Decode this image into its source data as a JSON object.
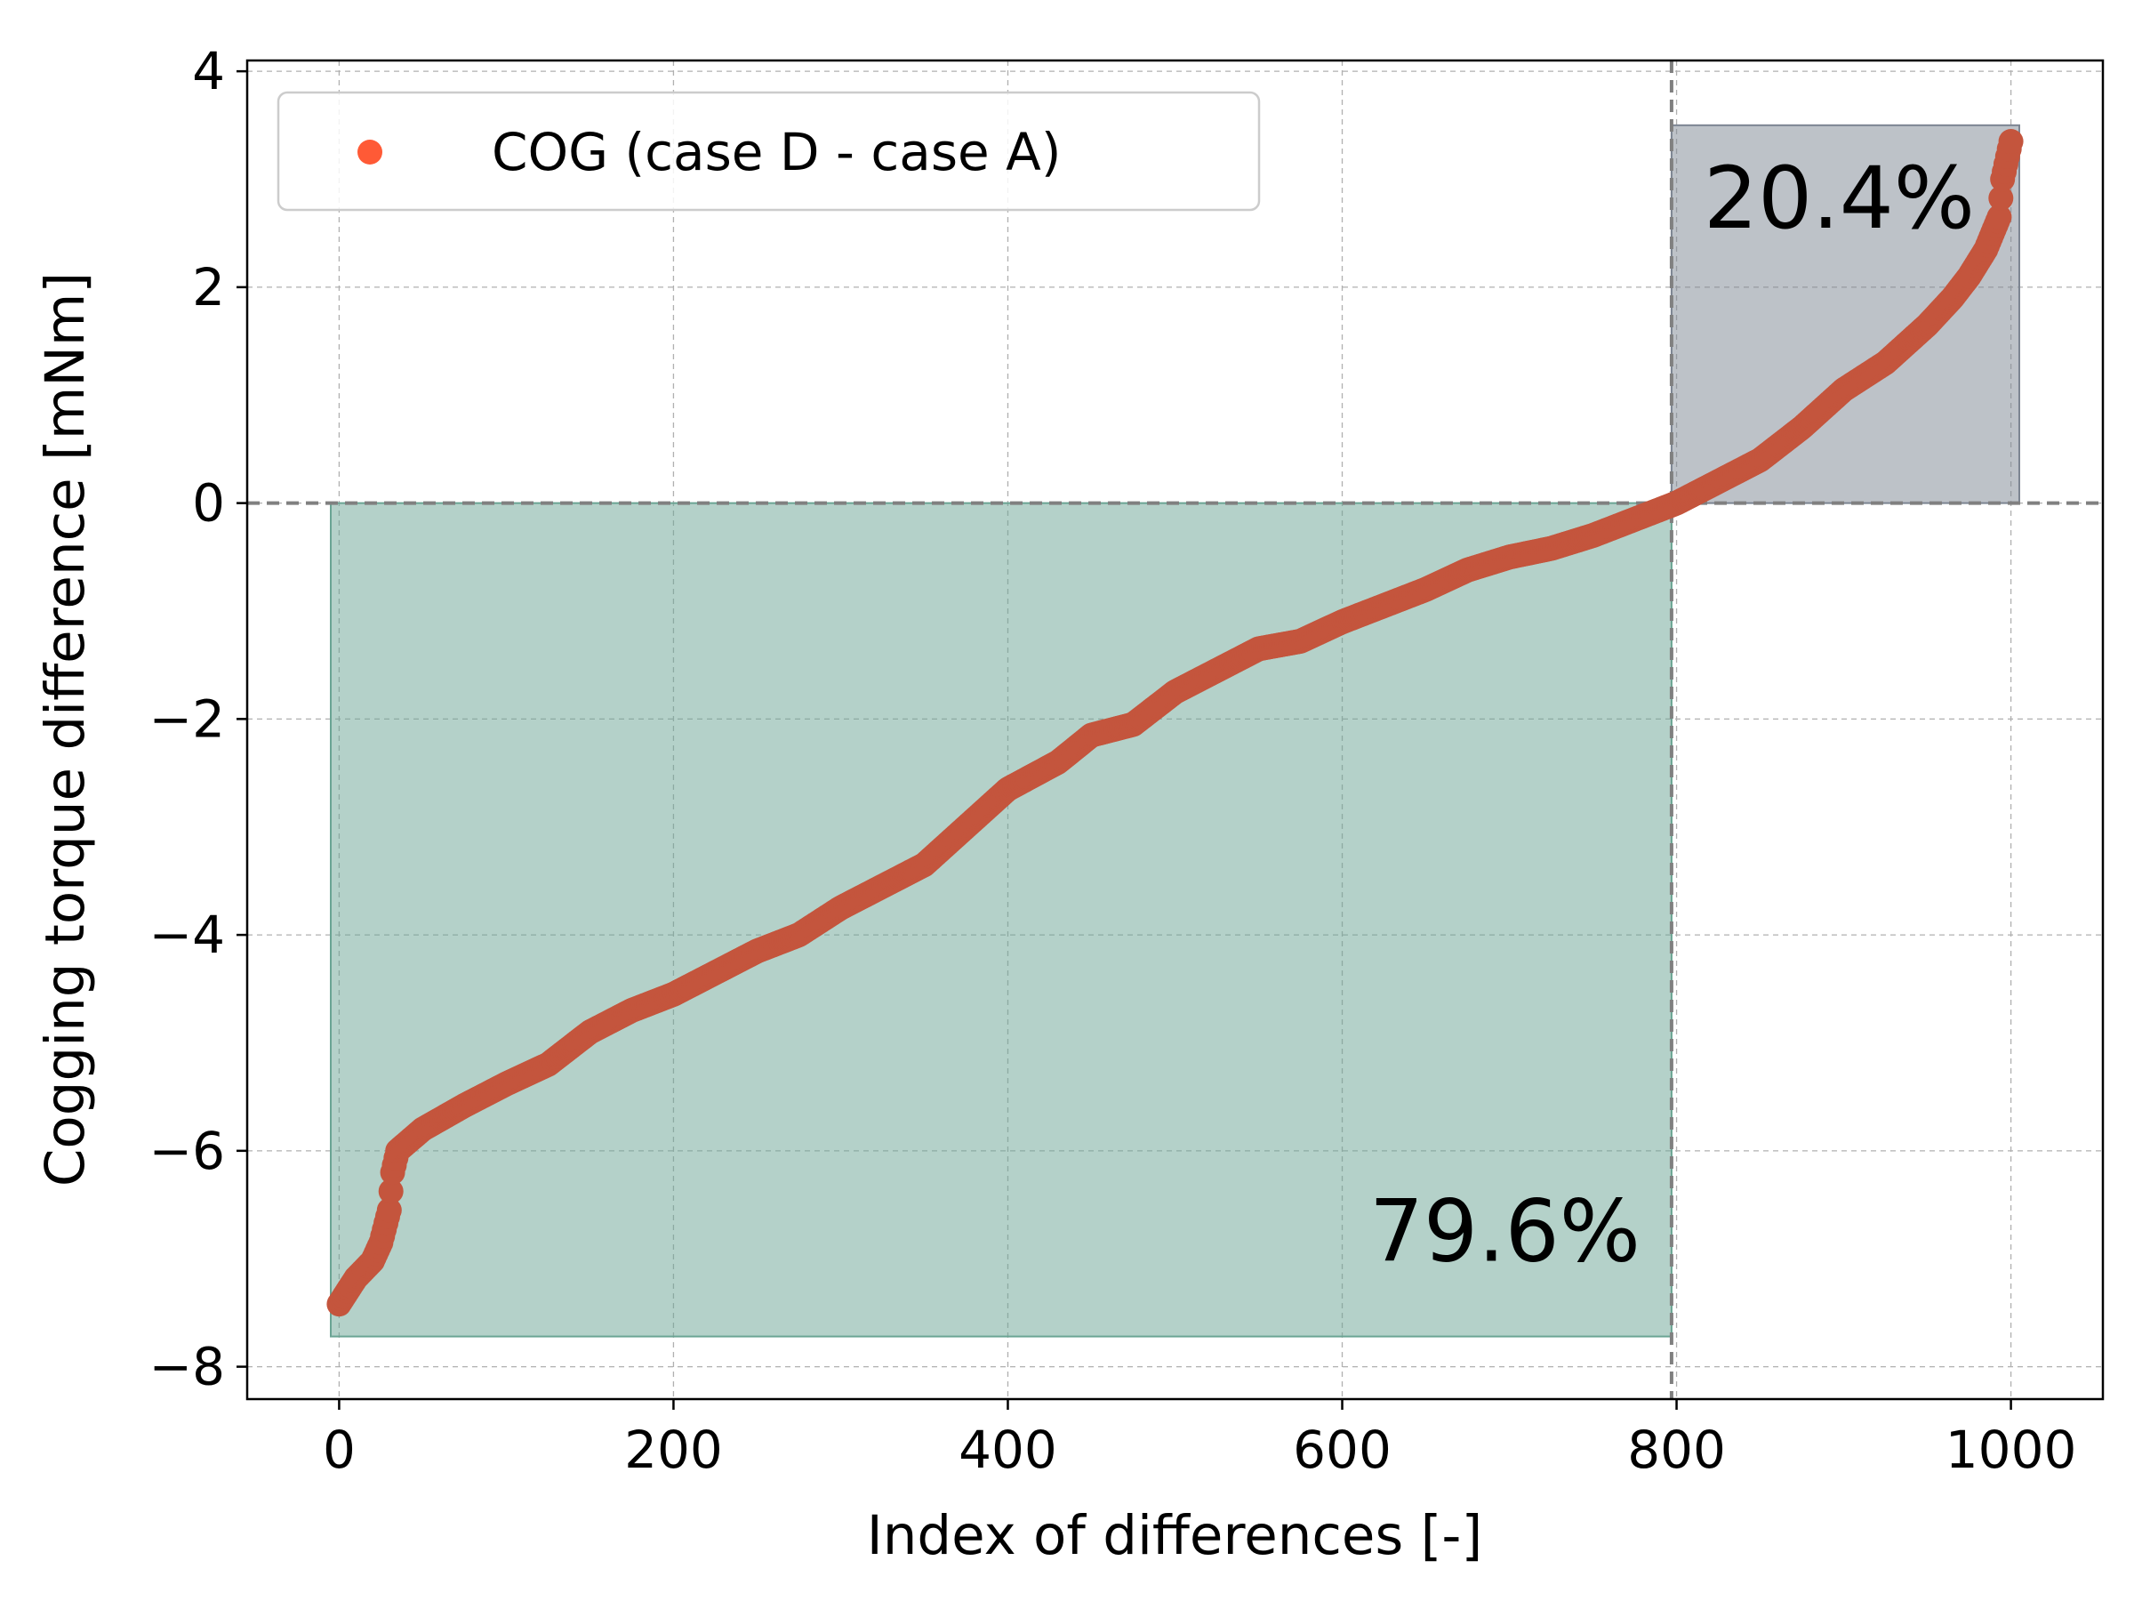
{
  "chart_data": {
    "type": "scatter",
    "xlabel": "Index of differences [-]",
    "ylabel": "Cogging torque difference [mNm]",
    "xlim": [
      -55,
      1055
    ],
    "ylim": [
      -8.3,
      4.1
    ],
    "xticks": [
      0,
      200,
      400,
      600,
      800,
      1000
    ],
    "yticks": [
      4,
      2,
      0,
      -2,
      -4,
      -6,
      -8
    ],
    "xtick_labels": [
      "0",
      "200",
      "400",
      "600",
      "800",
      "1000"
    ],
    "ytick_labels": [
      "4",
      "2",
      "0",
      "−2",
      "−4",
      "−6",
      "−8"
    ],
    "grid": true,
    "legend_position": "top-left",
    "series": [
      {
        "name": "COG (case D - case A)",
        "color": "#c4553d",
        "legend_color": "#ff5a36",
        "count": 1001,
        "anchors": [
          [
            0,
            -7.42
          ],
          [
            5,
            -7.3
          ],
          [
            10,
            -7.18
          ],
          [
            20,
            -7.02
          ],
          [
            25,
            -6.85
          ],
          [
            30,
            -6.55
          ],
          [
            32,
            -6.2
          ],
          [
            35,
            -6.0
          ],
          [
            50,
            -5.8
          ],
          [
            75,
            -5.58
          ],
          [
            100,
            -5.38
          ],
          [
            125,
            -5.2
          ],
          [
            150,
            -4.9
          ],
          [
            175,
            -4.7
          ],
          [
            200,
            -4.55
          ],
          [
            250,
            -4.15
          ],
          [
            275,
            -4.0
          ],
          [
            300,
            -3.75
          ],
          [
            325,
            -3.55
          ],
          [
            350,
            -3.35
          ],
          [
            375,
            -3.0
          ],
          [
            400,
            -2.65
          ],
          [
            430,
            -2.4
          ],
          [
            450,
            -2.15
          ],
          [
            475,
            -2.05
          ],
          [
            500,
            -1.75
          ],
          [
            525,
            -1.55
          ],
          [
            550,
            -1.35
          ],
          [
            575,
            -1.28
          ],
          [
            600,
            -1.1
          ],
          [
            625,
            -0.95
          ],
          [
            650,
            -0.8
          ],
          [
            675,
            -0.62
          ],
          [
            700,
            -0.5
          ],
          [
            725,
            -0.42
          ],
          [
            750,
            -0.3
          ],
          [
            775,
            -0.15
          ],
          [
            800,
            0.0
          ],
          [
            825,
            0.2
          ],
          [
            850,
            0.4
          ],
          [
            875,
            0.7
          ],
          [
            900,
            1.05
          ],
          [
            925,
            1.3
          ],
          [
            950,
            1.65
          ],
          [
            965,
            1.9
          ],
          [
            975,
            2.1
          ],
          [
            985,
            2.35
          ],
          [
            993,
            2.65
          ],
          [
            995,
            3.0
          ],
          [
            1000,
            3.35
          ]
        ]
      }
    ],
    "regions": [
      {
        "label": "79.6%",
        "x": [
          -5,
          797
        ],
        "y": [
          -7.72,
          0
        ],
        "color": "#6aa493"
      },
      {
        "label": "20.4%",
        "x": [
          797,
          1005
        ],
        "y": [
          0,
          3.5
        ],
        "color": "#7c8592"
      }
    ],
    "reference_lines": {
      "hline_y": 0,
      "vline_x": 797
    }
  }
}
